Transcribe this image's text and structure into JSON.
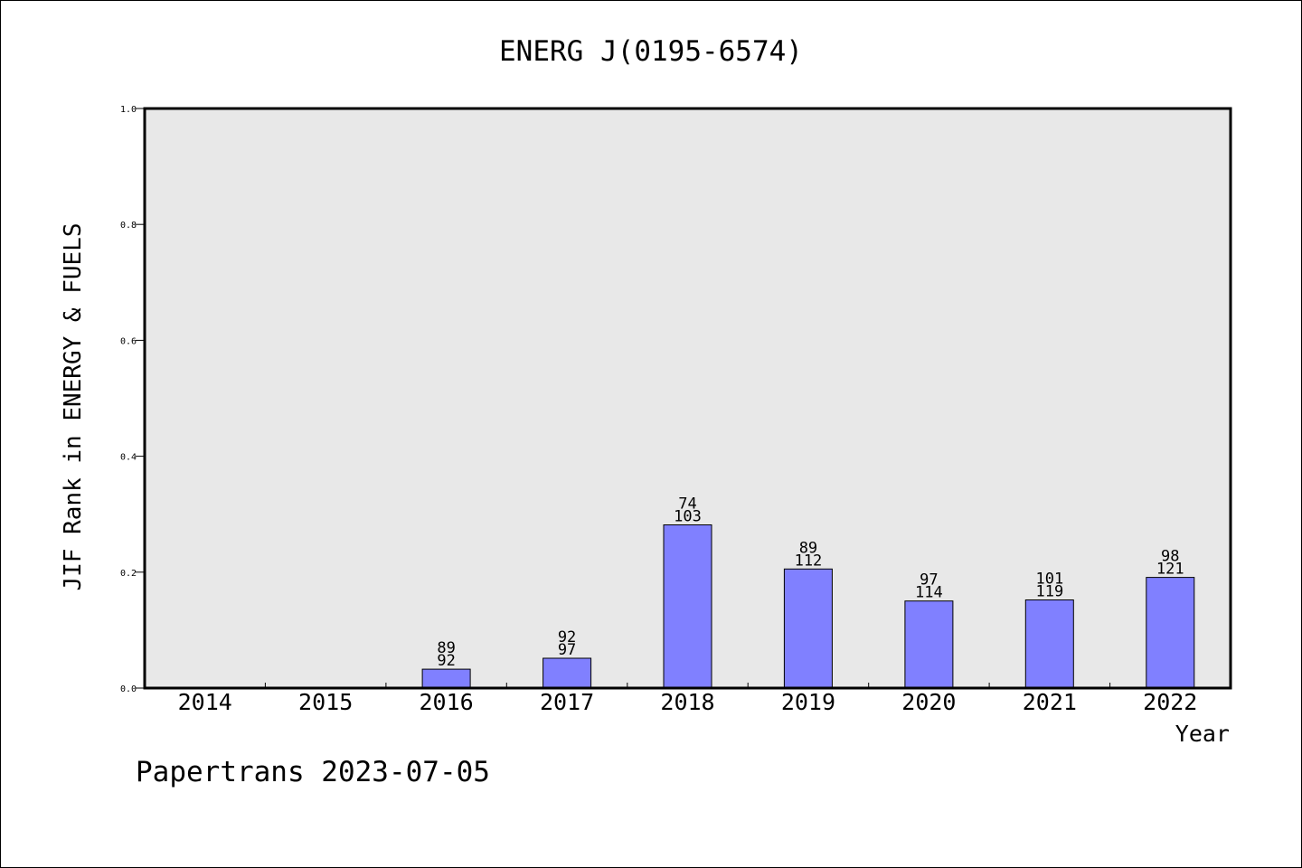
{
  "chart_data": {
    "type": "bar",
    "title": "ENERG J(0195-6574)",
    "xlabel": "Year",
    "ylabel": "JIF Rank in ENERGY & FUELS",
    "categories": [
      "2014",
      "2015",
      "2016",
      "2017",
      "2018",
      "2019",
      "2020",
      "2021",
      "2022"
    ],
    "values": [
      0,
      0,
      0.0326,
      0.0515,
      0.2816,
      0.2054,
      0.1503,
      0.1521,
      0.1909
    ],
    "bar_labels": [
      [
        "",
        ""
      ],
      [
        "",
        ""
      ],
      [
        "89",
        "92"
      ],
      [
        "92",
        "97"
      ],
      [
        "74",
        "103"
      ],
      [
        "89",
        "112"
      ],
      [
        "97",
        "114"
      ],
      [
        "101",
        "119"
      ],
      [
        "98",
        "121"
      ]
    ],
    "ylim": [
      0,
      1.0
    ],
    "yticks": [
      "0.0",
      "0.2",
      "0.4",
      "0.6",
      "0.8",
      "1.0"
    ],
    "grid": false,
    "legend": "none",
    "bar_color": "#8080ff",
    "plot_background": "#e8e8e8"
  },
  "footer": {
    "credit": "Papertrans 2023-07-05"
  }
}
